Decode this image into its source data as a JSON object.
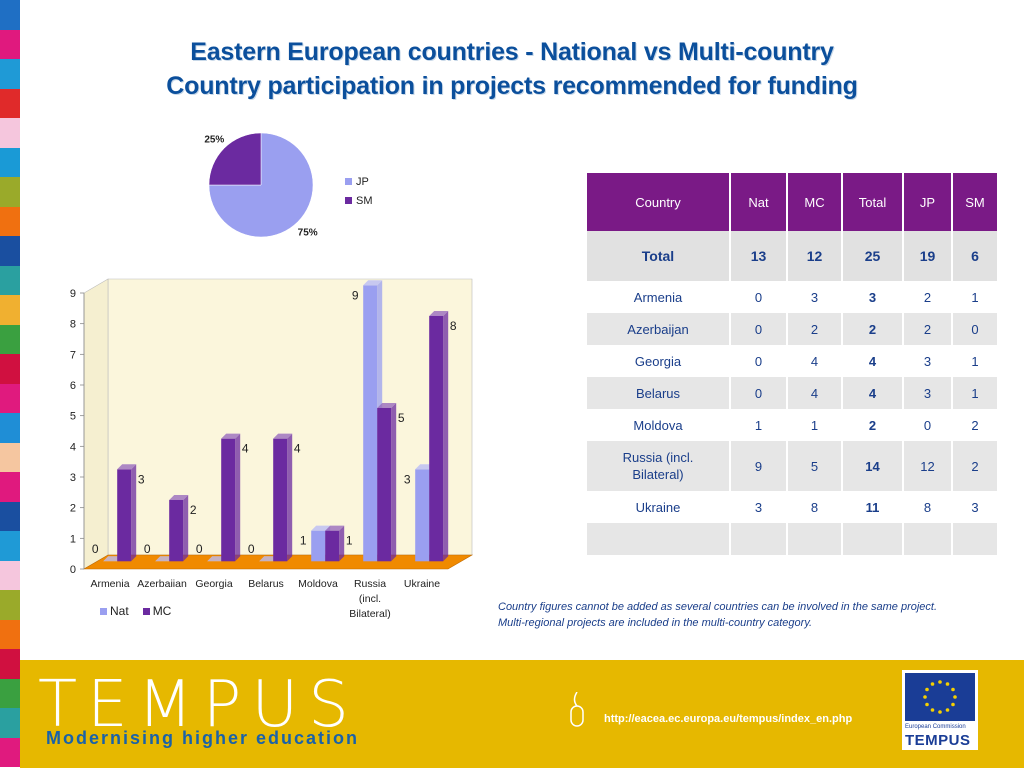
{
  "title_line1": "Eastern European countries - National vs Multi-country",
  "title_line2": "Country participation in projects recommended for funding",
  "colors": {
    "title": "#0b4f9c",
    "table_header": "#7a1a86",
    "nat_bar": "#9a9ff0",
    "mc_bar": "#6b2aa0",
    "pie_jp": "#9a9ff0",
    "pie_sm": "#6b2aa0",
    "footer": "#e6b800",
    "floor": "#f08a00",
    "chart_bg": "#fbf6dc"
  },
  "stripe_colors": [
    "#1f6fc4",
    "#e0197e",
    "#1f9ad6",
    "#e02a2a",
    "#f5c6dd",
    "#1a9ad6",
    "#9aaa2a",
    "#f07010",
    "#1a4fa0",
    "#2aa0a0",
    "#f0b030",
    "#3aa040",
    "#d01040",
    "#e01a7e",
    "#1f8ed6",
    "#f5c6a0",
    "#e0197e",
    "#1a4fa0",
    "#1f9ad6",
    "#f5c6dd",
    "#9aaa2a",
    "#f07010",
    "#d01040",
    "#3aa040",
    "#2aa0a0",
    "#e01a7e"
  ],
  "pie": {
    "labels": [
      "JP",
      "SM"
    ],
    "values": [
      75,
      25
    ],
    "percent_labels": [
      "75%",
      "25%"
    ]
  },
  "chart_data": [
    {
      "type": "pie",
      "categories": [
        "JP",
        "SM"
      ],
      "values": [
        75,
        25
      ],
      "legend": "right"
    },
    {
      "type": "bar",
      "categories": [
        "Armenia",
        "Azerbaiian",
        "Georgia",
        "Belarus",
        "Moldova",
        "Russia (incl. Bilateral)",
        "Ukraine"
      ],
      "category_lines": [
        [
          "Armenia"
        ],
        [
          "Azerbaiian"
        ],
        [
          "Georgia"
        ],
        [
          "Belarus"
        ],
        [
          "Moldova"
        ],
        [
          "Russia",
          "(incl.",
          "Bilateral)"
        ],
        [
          "Ukraine"
        ]
      ],
      "series": [
        {
          "name": "Nat",
          "values": [
            0,
            0,
            0,
            0,
            1,
            9,
            3
          ]
        },
        {
          "name": "MC",
          "values": [
            3,
            2,
            4,
            4,
            1,
            5,
            8
          ]
        }
      ],
      "ylim": [
        0,
        9
      ],
      "yticks": [
        0,
        1,
        2,
        3,
        4,
        5,
        6,
        7,
        8,
        9
      ],
      "legend": "bottom-left",
      "grid": false
    }
  ],
  "legend_labels": [
    "Nat",
    "MC"
  ],
  "table": {
    "headers": [
      "Country",
      "Nat",
      "MC",
      "Total",
      "JP",
      "SM"
    ],
    "total_row": [
      "Total",
      "13",
      "12",
      "25",
      "19",
      "6"
    ],
    "rows": [
      [
        "Armenia",
        "0",
        "3",
        "3",
        "2",
        "1"
      ],
      [
        "Azerbaijan",
        "0",
        "2",
        "2",
        "2",
        "0"
      ],
      [
        "Georgia",
        "0",
        "4",
        "4",
        "3",
        "1"
      ],
      [
        "Belarus",
        "0",
        "4",
        "4",
        "3",
        "1"
      ],
      [
        "Moldova",
        "1",
        "1",
        "2",
        "0",
        "2"
      ],
      [
        "Russia (incl. Bilateral)",
        "9",
        "5",
        "14",
        "12",
        "2"
      ],
      [
        "Ukraine",
        "3",
        "8",
        "11",
        "8",
        "3"
      ]
    ]
  },
  "footnote_line1": "Country figures cannot be added as several countries can be involved in the same project.",
  "footnote_line2": "Multi-regional projects are included in the multi-country category.",
  "footer": {
    "brand": "TEMPUS",
    "tagline": "Modernising higher education",
    "url": "http://eacea.ec.europa.eu/tempus/index_en.php",
    "eu_text": "European Commission",
    "eu_brand": "TEMPUS"
  }
}
